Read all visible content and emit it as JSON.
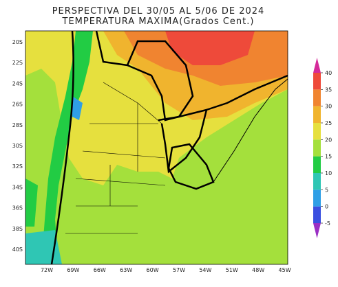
{
  "title": [
    "PERSPECTIVA DEL 30/05 AL 5/06 DE 2024",
    "TEMPERATURA MAXIMA(Grados Cent.)"
  ],
  "lat_labels": [
    "20S",
    "22S",
    "24S",
    "26S",
    "28S",
    "30S",
    "32S",
    "34S",
    "36S",
    "38S",
    "40S"
  ],
  "lon_labels": [
    "72W",
    "69W",
    "66W",
    "63W",
    "60W",
    "57W",
    "54W",
    "51W",
    "48W",
    "45W"
  ],
  "colorbar": {
    "ticks": [
      -5,
      0,
      5,
      10,
      15,
      20,
      25,
      30,
      35,
      40
    ],
    "colors": [
      "#9b2fc4",
      "#3a4fe0",
      "#2f9fe6",
      "#2fc6b4",
      "#22cc44",
      "#a4e03c",
      "#e6e03e",
      "#f0b42e",
      "#f08430",
      "#ee4a3a",
      "#d52a9a"
    ]
  }
}
